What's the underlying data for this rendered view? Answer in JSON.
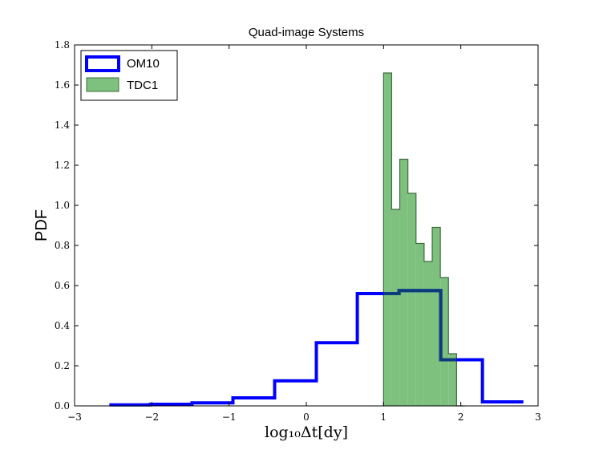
{
  "chart_data": {
    "type": "histogram",
    "title": "Quad-image Systems",
    "xlabel": "log₁₀Δt[dy]",
    "ylabel": "PDF",
    "xlim": [
      -3,
      3
    ],
    "ylim": [
      0,
      1.8
    ],
    "x_ticks": [
      "−3",
      "−2",
      "−1",
      "0",
      "1",
      "2",
      "3"
    ],
    "y_ticks": [
      "0.0",
      "0.2",
      "0.4",
      "0.6",
      "0.8",
      "1.0",
      "1.2",
      "1.4",
      "1.6",
      "1.8"
    ],
    "grid": false,
    "legend_position": "top-left",
    "series": [
      {
        "name": "OM10",
        "style": "step-outline",
        "color": "#0000ff",
        "bin_edges": [
          -2.55,
          -2.02,
          -1.48,
          -0.95,
          -0.41,
          0.13,
          0.66,
          1.2,
          1.74,
          2.28,
          2.81
        ],
        "values": [
          0.005,
          0.008,
          0.015,
          0.04,
          0.125,
          0.315,
          0.56,
          0.575,
          0.23,
          0.02
        ]
      },
      {
        "name": "TDC1",
        "style": "filled-bars",
        "color": "#7ec07e",
        "edge_color": "#3d6b3d",
        "bin_edges": [
          1.0,
          1.105,
          1.21,
          1.315,
          1.42,
          1.525,
          1.63,
          1.735,
          1.84,
          1.945,
          2.05
        ],
        "values": [
          1.66,
          0.98,
          1.23,
          1.06,
          0.81,
          0.72,
          0.89,
          0.64,
          0.26,
          0.0
        ]
      }
    ]
  }
}
